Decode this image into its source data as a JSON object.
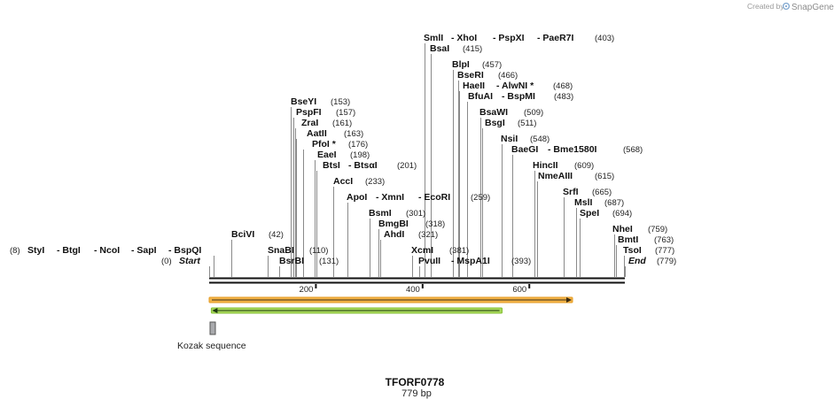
{
  "credit": {
    "prefix": "Created by",
    "brand": "SnapGene"
  },
  "map": {
    "name": "TFORF0778",
    "length_label": "779 bp",
    "length": 779,
    "ticks": [
      "200",
      "400",
      "600"
    ]
  },
  "sites": [
    {
      "text": "(8)",
      "pos": 8
    },
    {
      "text": "StyI",
      "pos": 8
    },
    {
      "text": "- BtgI",
      "pos": 8
    },
    {
      "text": "- NcoI",
      "pos": 8
    },
    {
      "text": "- SapI",
      "pos": 8
    },
    {
      "text": "- BspQI",
      "pos": 8
    },
    {
      "text": "(0)",
      "pos": 0
    },
    {
      "text": "Start",
      "pos": 0
    },
    {
      "text": "BciVI",
      "pos": 42
    },
    {
      "text": "(42)",
      "pos": 42
    },
    {
      "text": "SnaBI",
      "pos": 110
    },
    {
      "text": "(110)",
      "pos": 110
    },
    {
      "text": "BsrBI",
      "pos": 131
    },
    {
      "text": "(131)",
      "pos": 131
    },
    {
      "text": "BseYI",
      "pos": 153
    },
    {
      "text": "(153)",
      "pos": 153
    },
    {
      "text": "PspFI",
      "pos": 157
    },
    {
      "text": "(157)",
      "pos": 157
    },
    {
      "text": "ZraI",
      "pos": 161
    },
    {
      "text": "(161)",
      "pos": 161
    },
    {
      "text": "AatII",
      "pos": 163
    },
    {
      "text": "(163)",
      "pos": 163
    },
    {
      "text": "PfoI *",
      "pos": 176
    },
    {
      "text": "(176)",
      "pos": 176
    },
    {
      "text": "EaeI",
      "pos": 198
    },
    {
      "text": "(198)",
      "pos": 198
    },
    {
      "text": "BtsI",
      "pos": 201
    },
    {
      "text": "- BtsαI",
      "pos": 201
    },
    {
      "text": "(201)",
      "pos": 201
    },
    {
      "text": "AccI",
      "pos": 233
    },
    {
      "text": "(233)",
      "pos": 233
    },
    {
      "text": "ApoI",
      "pos": 259
    },
    {
      "text": "- XmnI",
      "pos": 259
    },
    {
      "text": "- EcoRI",
      "pos": 259
    },
    {
      "text": "(259)",
      "pos": 259
    },
    {
      "text": "BsmI",
      "pos": 301
    },
    {
      "text": "(301)",
      "pos": 301
    },
    {
      "text": "BmgBI",
      "pos": 318
    },
    {
      "text": "(318)",
      "pos": 318
    },
    {
      "text": "AhdI",
      "pos": 321
    },
    {
      "text": "(321)",
      "pos": 321
    },
    {
      "text": "XcmI",
      "pos": 381
    },
    {
      "text": "(381)",
      "pos": 381
    },
    {
      "text": "PvuII",
      "pos": 393
    },
    {
      "text": "- MspA1I",
      "pos": 393
    },
    {
      "text": "(393)",
      "pos": 393
    },
    {
      "text": "SmlI",
      "pos": 403
    },
    {
      "text": "- XhoI",
      "pos": 403
    },
    {
      "text": "- PspXI",
      "pos": 403
    },
    {
      "text": "- PaeR7I",
      "pos": 403
    },
    {
      "text": "(403)",
      "pos": 403
    },
    {
      "text": "BsaI",
      "pos": 415
    },
    {
      "text": "(415)",
      "pos": 415
    },
    {
      "text": "BlpI",
      "pos": 457
    },
    {
      "text": "(457)",
      "pos": 457
    },
    {
      "text": "BseRI",
      "pos": 466
    },
    {
      "text": "(466)",
      "pos": 466
    },
    {
      "text": "HaeII",
      "pos": 468
    },
    {
      "text": "- AlwNI *",
      "pos": 468
    },
    {
      "text": "(468)",
      "pos": 468
    },
    {
      "text": "BfuAI",
      "pos": 483
    },
    {
      "text": "- BspMI",
      "pos": 483
    },
    {
      "text": "(483)",
      "pos": 483
    },
    {
      "text": "BsaWI",
      "pos": 509
    },
    {
      "text": "(509)",
      "pos": 509
    },
    {
      "text": "BsgI",
      "pos": 511
    },
    {
      "text": "(511)",
      "pos": 511
    },
    {
      "text": "NsiI",
      "pos": 548
    },
    {
      "text": "(548)",
      "pos": 548
    },
    {
      "text": "BaeGI",
      "pos": 568
    },
    {
      "text": "- Bme1580I",
      "pos": 568
    },
    {
      "text": "(568)",
      "pos": 568
    },
    {
      "text": "HincII",
      "pos": 609
    },
    {
      "text": "(609)",
      "pos": 609
    },
    {
      "text": "NmeAIII",
      "pos": 615
    },
    {
      "text": "(615)",
      "pos": 615
    },
    {
      "text": "SrfI",
      "pos": 665
    },
    {
      "text": "(665)",
      "pos": 665
    },
    {
      "text": "MslI",
      "pos": 687
    },
    {
      "text": "(687)",
      "pos": 687
    },
    {
      "text": "SpeI",
      "pos": 694
    },
    {
      "text": "(694)",
      "pos": 694
    },
    {
      "text": "NheI",
      "pos": 759
    },
    {
      "text": "(759)",
      "pos": 759
    },
    {
      "text": "BmtI",
      "pos": 763
    },
    {
      "text": "(763)",
      "pos": 763
    },
    {
      "text": "TsoI",
      "pos": 777
    },
    {
      "text": "(777)",
      "pos": 777
    },
    {
      "text": "(779)",
      "pos": 779
    },
    {
      "text": "End",
      "pos": 779
    }
  ],
  "features": {
    "orf1": {
      "start": 1,
      "end": 681,
      "direction": "forward",
      "color": "#f0a830"
    },
    "orf2": {
      "start": 5,
      "end": 549,
      "direction": "reverse",
      "color": "#9ad24c"
    },
    "kozak": {
      "label": "Kozak sequence",
      "start": 1,
      "end": 10,
      "color": "#a9aaad"
    }
  }
}
